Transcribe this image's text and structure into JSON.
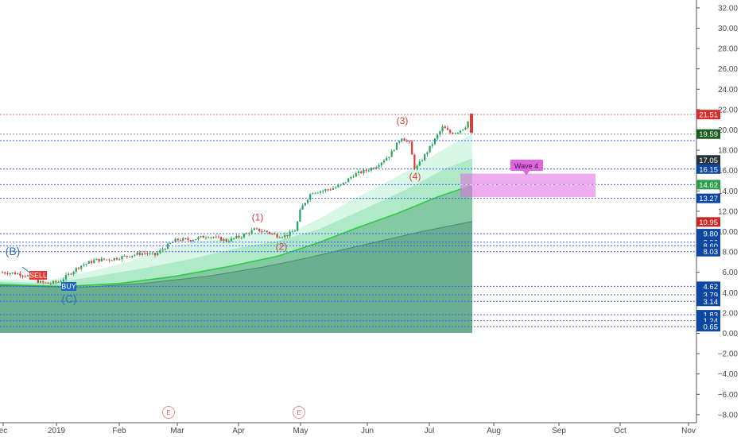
{
  "chart_data": {
    "type": "candlestick",
    "x_labels": [
      "ec",
      "2019",
      "Feb",
      "Mar",
      "Apr",
      "May",
      "Jun",
      "Jul",
      "Aug",
      "Sep",
      "Oct",
      "Nov"
    ],
    "y_ticks": [
      "32.00",
      "30.00",
      "28.00",
      "26.00",
      "24.00",
      "22.00",
      "20.00",
      "18.00",
      "16.00",
      "14.00",
      "12.00",
      "10.00",
      "8.00",
      "6.00",
      "4.00",
      "2.00",
      "0.00",
      "−2.00",
      "−4.00",
      "−6.00",
      "−8.00"
    ],
    "y_range": [
      -9.5,
      33
    ],
    "dashed_levels": [
      {
        "price": 21.51,
        "label": "21.51",
        "color": "#d32f2f",
        "line": "#e57373"
      },
      {
        "price": 19.59,
        "label": "19.59",
        "color": "#1b5e20",
        "line": "#9e9e9e"
      },
      {
        "price": 18.95,
        "label": "",
        "color": "#1a237e",
        "line": "#3d5afe"
      },
      {
        "price": 17.05,
        "label": "17.05",
        "color": "#263238",
        "line": null
      },
      {
        "price": 16.15,
        "label": "16.15",
        "color": "#0d47a1",
        "line": "#3d5afe"
      },
      {
        "price": 14.62,
        "label": "14.62",
        "color": "#2e9e4a",
        "line": "#3d5afe"
      },
      {
        "price": 13.27,
        "label": "13.27",
        "color": "#0d47a1",
        "line": "#3d5afe"
      },
      {
        "price": 10.95,
        "label": "10.95",
        "color": "#c62828",
        "line": null
      },
      {
        "price": 9.8,
        "label": "9.80",
        "color": "#0d47a1",
        "line": "#3d5afe"
      },
      {
        "price": 8.96,
        "label": "8.96",
        "color": "#0d47a1",
        "line": "#3d5afe"
      },
      {
        "price": 8.6,
        "label": "8.60",
        "color": "#0d47a1",
        "line": "#3d5afe"
      },
      {
        "price": 8.03,
        "label": "8.03",
        "color": "#0d47a1",
        "line": "#3d5afe"
      },
      {
        "price": 4.62,
        "label": "4.62",
        "color": "#0d47a1",
        "line": "#3d5afe"
      },
      {
        "price": 3.79,
        "label": "3.79",
        "color": "#0d47a1",
        "line": "#3d5afe"
      },
      {
        "price": 3.14,
        "label": "3.14",
        "color": "#0d47a1",
        "line": "#3d5afe"
      },
      {
        "price": 1.83,
        "label": "1.83",
        "color": "#0d47a1",
        "line": "#3d5afe"
      },
      {
        "price": 1.24,
        "label": "1.24",
        "color": "#0d47a1",
        "line": "#3d5afe"
      },
      {
        "price": 0.65,
        "label": "0.65",
        "color": "#0d47a1",
        "line": "#3d5afe"
      }
    ],
    "wave_labels": [
      {
        "text": "(B)",
        "x": "ec",
        "price": 7.7,
        "style": "blue"
      },
      {
        "text": "(C)",
        "x": "2019",
        "price": 3.0,
        "style": "blue"
      },
      {
        "text": "(1)",
        "x": "Apr",
        "price": 11.1,
        "style": "red"
      },
      {
        "text": "(2)",
        "x": "May",
        "price": 8.2,
        "style": "red"
      },
      {
        "text": "(3)",
        "x": "Jun",
        "price": 20.6,
        "style": "red"
      },
      {
        "text": "(4)",
        "x": "Jul",
        "price": 15.1,
        "style": "red"
      }
    ],
    "signals": [
      {
        "text": "SELL",
        "color": "#e53935"
      },
      {
        "text": "BUY",
        "color": "#1e63c8"
      }
    ],
    "target_zone": {
      "label": "Wave 4",
      "top": 15.7,
      "bottom": 13.4,
      "color": "#e066e0"
    },
    "earnings_marker": "E",
    "grid": false
  }
}
